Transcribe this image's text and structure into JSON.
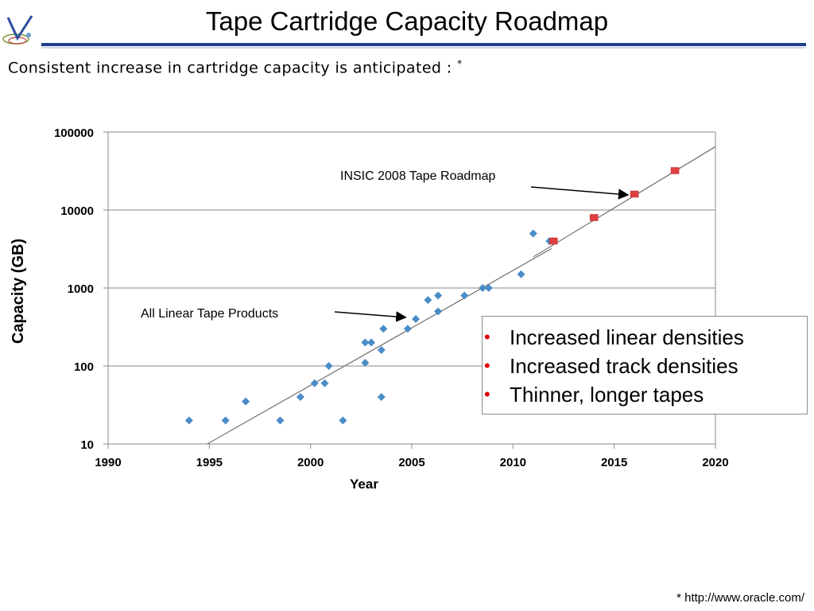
{
  "slide": {
    "title": "Tape Cartridge Capacity Roadmap",
    "subtitle": "Consistent increase in cartridge capacity is anticipated :",
    "subtitle_mark": "*",
    "footnote": "* http://www.oracle.com/",
    "logo_icon": "v-logo-icon"
  },
  "bullets": {
    "items": [
      "Increased linear densities",
      "Increased track densities",
      "Thinner, longer tapes"
    ],
    "marker_color": "#e00000"
  },
  "chart_data": {
    "type": "scatter",
    "title": "",
    "xlabel": "Year",
    "ylabel": "Capacity (GB)",
    "xlim": [
      1990,
      2020
    ],
    "ylim": [
      10,
      100000
    ],
    "yscale": "log",
    "grid": "horizontal",
    "x_ticks": [
      "1990",
      "1995",
      "2000",
      "2005",
      "2010",
      "2015",
      "2020"
    ],
    "y_ticks": [
      "10",
      "100",
      "1000",
      "10000",
      "100000"
    ],
    "series": [
      {
        "name": "All Linear Tape Products",
        "color": "#4a8cc8",
        "marker": "diamond",
        "points": [
          [
            1994,
            20
          ],
          [
            1995.8,
            20
          ],
          [
            1996.8,
            35
          ],
          [
            1998.5,
            20
          ],
          [
            1999.5,
            40
          ],
          [
            2000.2,
            60
          ],
          [
            2000.7,
            60
          ],
          [
            2000.9,
            100
          ],
          [
            2001.6,
            20
          ],
          [
            2002.7,
            110
          ],
          [
            2002.7,
            200
          ],
          [
            2003.0,
            200
          ],
          [
            2003.5,
            40
          ],
          [
            2003.5,
            160
          ],
          [
            2003.6,
            300
          ],
          [
            2004.8,
            300
          ],
          [
            2005.2,
            400
          ],
          [
            2005.8,
            700
          ],
          [
            2006.3,
            500
          ],
          [
            2006.3,
            800
          ],
          [
            2007.6,
            800
          ],
          [
            2008.5,
            1000
          ],
          [
            2008.8,
            1000
          ],
          [
            2010.4,
            1500
          ],
          [
            2011.0,
            5000
          ],
          [
            2011.8,
            4000
          ],
          [
            2011.95,
            4000
          ]
        ]
      },
      {
        "name": "INSIC 2008 Tape Roadmap",
        "color": "#e04040",
        "marker": "square",
        "points": [
          [
            2012,
            4000
          ],
          [
            2014,
            8000
          ],
          [
            2016,
            16000
          ],
          [
            2018,
            32000
          ]
        ]
      }
    ],
    "trendlines": [
      {
        "from": [
          1994.9,
          10
        ],
        "to": [
          2011.9,
          3200
        ]
      },
      {
        "from": [
          2011.0,
          2500
        ],
        "to": [
          2020,
          65000
        ]
      }
    ],
    "annotations": [
      {
        "text": "INSIC 2008 Tape Roadmap",
        "anchor": [
          2016,
          16000
        ]
      },
      {
        "text": "All Linear Tape Products",
        "anchor": [
          2004.7,
          420
        ]
      }
    ]
  }
}
